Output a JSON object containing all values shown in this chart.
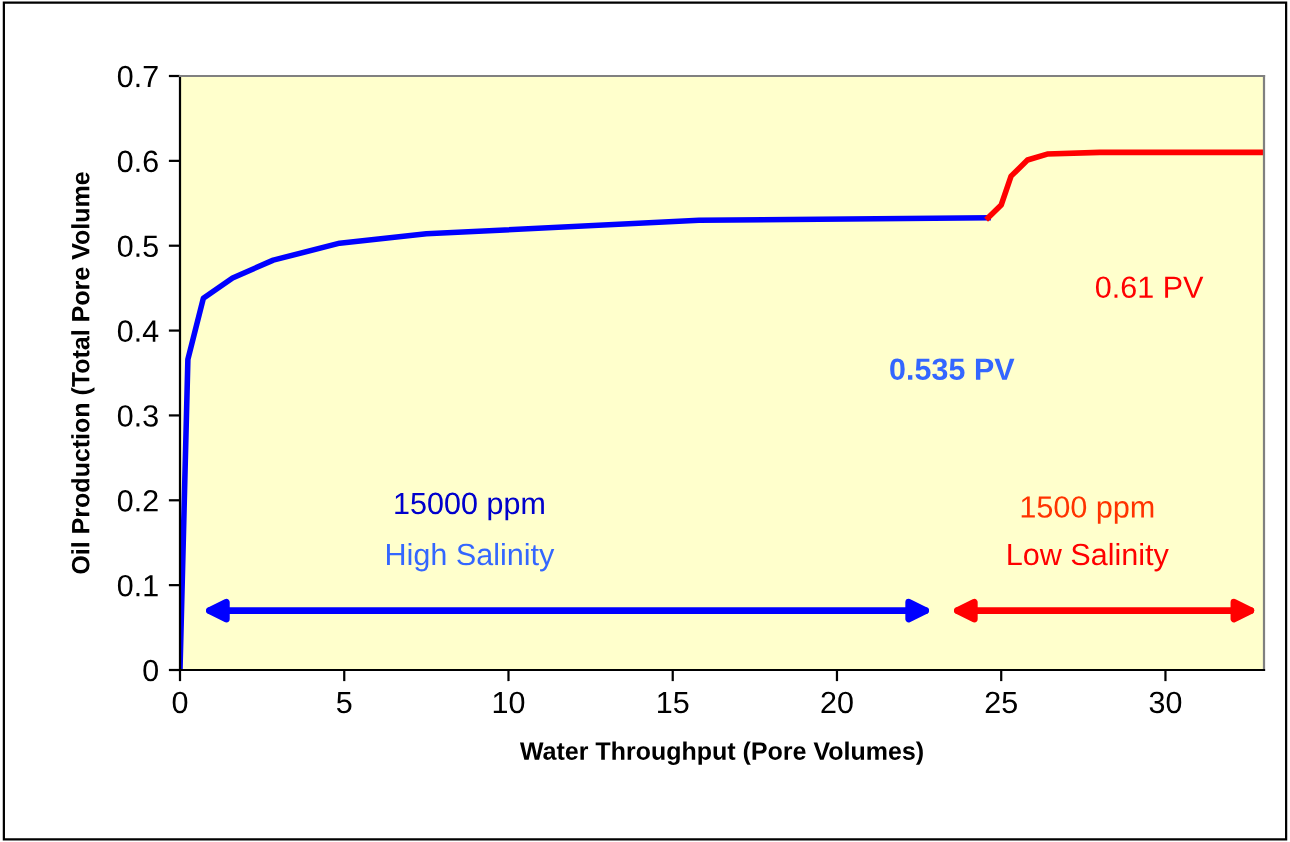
{
  "chart_data": {
    "type": "line",
    "xlabel": "Water Throughput (Pore Volumes)",
    "ylabel": "Oil Production (Total Pore Volume",
    "xlim": [
      0,
      33
    ],
    "xticks": [
      0,
      5,
      10,
      15,
      20,
      25,
      30
    ],
    "ylim": [
      0,
      0.7
    ],
    "yticks": [
      0,
      0.1,
      0.2,
      0.3,
      0.4,
      0.5,
      0.6,
      0.7
    ],
    "grid": false,
    "legend": false,
    "marker": "none",
    "line_style": "solid",
    "series": [
      {
        "color": "#0000ff",
        "x": [
          0,
          0.24,
          0.71,
          1.6,
          2.84,
          4.86,
          7.5,
          15.8,
          24.6
        ],
        "values": [
          0,
          0.366,
          0.438,
          0.462,
          0.483,
          0.503,
          0.514,
          0.53,
          0.533
        ]
      },
      {
        "color": "#ff0000",
        "x": [
          24.6,
          25.0,
          25.3,
          25.8,
          26.4,
          28,
          32.9
        ],
        "values": [
          0.533,
          0.548,
          0.582,
          0.601,
          0.608,
          0.61,
          0.61
        ]
      }
    ],
    "annotations": [
      "15000 ppm",
      "High Salinity",
      "1500 ppm",
      "Low Salinity",
      "0.535 PV",
      "0.61 PV"
    ]
  }
}
